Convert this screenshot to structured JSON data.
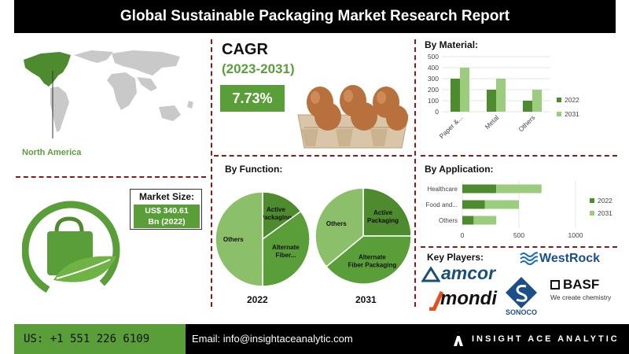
{
  "title": "Global Sustainable Packaging Market Research Report",
  "cagr": {
    "label": "CAGR",
    "period": "(2023-2031)",
    "value": "7.73%"
  },
  "region": "North America",
  "market_size": {
    "label": "Market Size:",
    "value_line1": "US$ 340.61",
    "value_line2": "Bn (2022)"
  },
  "footer": {
    "phone": "US: +1 551 226 6109",
    "email": "Email: info@insightaceanalytic.com",
    "brand": "INSIGHT ACE ANALYTIC"
  },
  "key_players": {
    "title": "Key Players:",
    "amcor": "amcor",
    "westrock": "WestRock",
    "mondi": "mondi",
    "sonoco": "SONOCO",
    "basf": "BASF",
    "basf_tagline": "We create chemistry"
  },
  "colors": {
    "accent_green": "#5a9e3a",
    "dark_green": "#4e8a2e",
    "light_green": "#9ccc7e",
    "divider": "#8b1a1a"
  },
  "chart_data": [
    {
      "type": "bar",
      "title": "By Material:",
      "categories": [
        "Paper &...",
        "Metal",
        "Others"
      ],
      "series": [
        {
          "name": "2022",
          "values": [
            300,
            200,
            100
          ],
          "color": "#4e8a2e"
        },
        {
          "name": "2031",
          "values": [
            400,
            300,
            200
          ],
          "color": "#9ccc7e"
        }
      ],
      "ylim": [
        0,
        500
      ],
      "yticks": [
        0,
        100,
        200,
        300,
        400,
        500
      ],
      "grid": true,
      "legend": "right"
    },
    {
      "type": "pie",
      "title": "By Function:",
      "subtitle": "2022",
      "slices": [
        {
          "label": "Active Packaging",
          "value": 15,
          "color": "#4e8a2e"
        },
        {
          "label": "Alternate Fiber...",
          "value": 35,
          "color": "#5a9e3a"
        },
        {
          "label": "Others",
          "value": 50,
          "color": "#8cbf6a"
        }
      ]
    },
    {
      "type": "pie",
      "subtitle": "2031",
      "slices": [
        {
          "label": "Active Packaging",
          "value": 25,
          "color": "#4e8a2e"
        },
        {
          "label": "Alternate Fiber Packaging",
          "value": 39,
          "color": "#5a9e3a"
        },
        {
          "label": "Others",
          "value": 36,
          "color": "#8cbf6a"
        }
      ]
    },
    {
      "type": "bar",
      "orientation": "horizontal",
      "title": "By Application:",
      "categories": [
        "Healthcare",
        "Food and...",
        "Others"
      ],
      "series": [
        {
          "name": "2022",
          "values": [
            300,
            200,
            100
          ],
          "color": "#4e8a2e"
        },
        {
          "name": "2031",
          "values": [
            400,
            300,
            200
          ],
          "color": "#9ccc7e"
        }
      ],
      "xlim": [
        0,
        1000
      ],
      "xticks": [
        0,
        500,
        1000
      ],
      "stacked": true,
      "legend": "right"
    }
  ]
}
